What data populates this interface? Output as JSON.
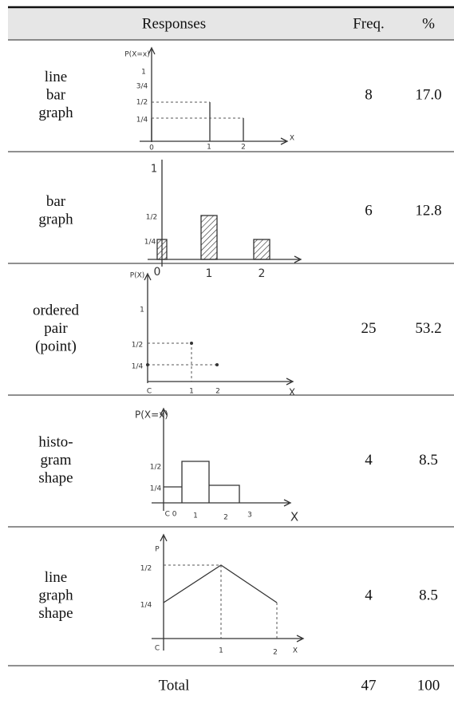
{
  "table": {
    "header": [
      "Responses",
      "Freq.",
      "%"
    ],
    "rows": [
      {
        "response": [
          "line",
          "bar",
          "graph"
        ],
        "freq": 8,
        "percent": "17.0",
        "sketch_labels": [
          "P(X=x)",
          "1",
          "3/4",
          "1/2",
          "1/4",
          "0",
          "1",
          "2",
          "X"
        ]
      },
      {
        "response": [
          "bar",
          "graph"
        ],
        "freq": 6,
        "percent": "12.8",
        "sketch_labels": [
          "1",
          "1/2",
          "1/4",
          "0",
          "1",
          "2"
        ]
      },
      {
        "response": [
          "ordered",
          "pair",
          "(point)"
        ],
        "freq": 25,
        "percent": "53.2",
        "sketch_labels": [
          "P(X)",
          "1",
          "1/2",
          "1/4",
          "C",
          "1",
          "2",
          "X"
        ]
      },
      {
        "response": [
          "histo-",
          "gram",
          "shape"
        ],
        "freq": 4,
        "percent": "8.5",
        "sketch_labels": [
          "P(X=x)",
          "1/2",
          "1/4",
          "C 0",
          "1",
          "2",
          "3",
          "X"
        ]
      },
      {
        "response": [
          "line",
          "graph",
          "shape"
        ],
        "freq": 4,
        "percent": "8.5",
        "sketch_labels": [
          "P",
          "1/2",
          "1/4",
          "C",
          "1",
          "2",
          "X"
        ]
      }
    ],
    "total": {
      "label": "Total",
      "freq": 47,
      "percent": 100
    }
  }
}
